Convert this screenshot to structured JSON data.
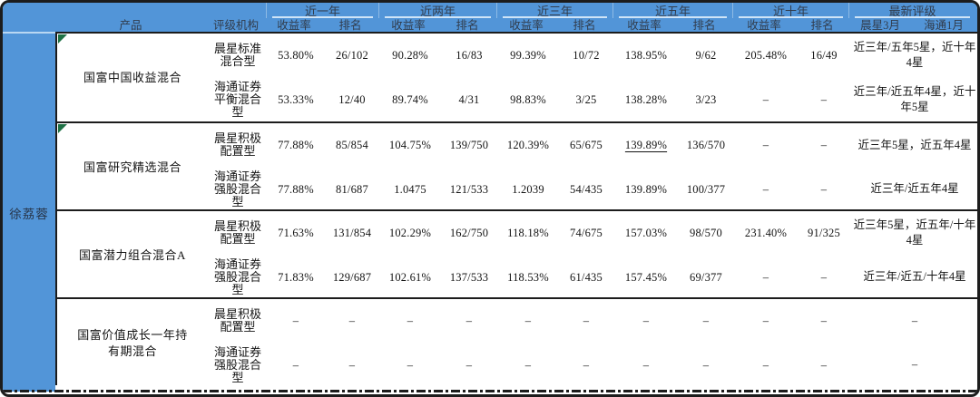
{
  "manager": "徐荔蓉",
  "header": {
    "row_label_product": "产品",
    "row_label_agency": "评级机构",
    "period_groups": [
      "近一年",
      "近两年",
      "近三年",
      "近五年",
      "近十年"
    ],
    "metric_labels": {
      "return": "收益率",
      "rank": "排名"
    },
    "rating": {
      "title": "最新评级",
      "subs": [
        "晨星3月",
        "海通1月"
      ]
    }
  },
  "groups": [
    {
      "product": "国富中国收益混合",
      "rows": [
        {
          "agency": "晨星标准混合型",
          "values": [
            "53.80%",
            "26/102",
            "90.28%",
            "16/83",
            "99.39%",
            "10/72",
            "138.95%",
            "9/62",
            "205.48%",
            "16/49"
          ],
          "rating": "近三年/五年5星，近十年4星"
        },
        {
          "agency": "海通证券平衡混合型",
          "values": [
            "53.33%",
            "12/40",
            "89.74%",
            "4/31",
            "98.83%",
            "3/25",
            "138.28%",
            "3/23",
            "–",
            "–"
          ],
          "rating": "近三年/近五年4星，近十年5星"
        }
      ]
    },
    {
      "product": "国富研究精选混合",
      "rows": [
        {
          "agency": "晨星积极配置型",
          "values": [
            "77.88%",
            "85/854",
            "104.75%",
            "139/750",
            "120.39%",
            "65/675",
            "139.89%",
            "136/570",
            "–",
            "–"
          ],
          "rating": "近三年5星，近五年4星"
        },
        {
          "agency": "海通证券强股混合型",
          "values": [
            "77.88%",
            "81/687",
            "1.0475",
            "121/533",
            "1.2039",
            "54/435",
            "139.89%",
            "100/377",
            "–",
            "–"
          ],
          "rating": "近三年/近五年4星"
        }
      ]
    },
    {
      "product": "国富潜力组合混合A",
      "rows": [
        {
          "agency": "晨星积极配置型",
          "values": [
            "71.63%",
            "131/854",
            "102.29%",
            "162/750",
            "118.18%",
            "74/675",
            "157.03%",
            "98/570",
            "231.40%",
            "91/325"
          ],
          "rating": "近三年5星，近五年/十年4星"
        },
        {
          "agency": "海通证券强股混合型",
          "values": [
            "71.83%",
            "129/687",
            "102.61%",
            "137/533",
            "118.53%",
            "61/435",
            "157.45%",
            "69/377",
            "–",
            "–"
          ],
          "rating": "近三年/近五/十年4星"
        }
      ]
    },
    {
      "product": "国富价值成长一年持有期混合",
      "rows": [
        {
          "agency": "晨星积极配置型",
          "values": [
            "–",
            "–",
            "–",
            "–",
            "–",
            "–",
            "–",
            "–",
            "–",
            "–"
          ],
          "rating": "–"
        },
        {
          "agency": "海通证券强股混合型",
          "values": [
            "–",
            "–",
            "–",
            "–",
            "–",
            "–",
            "–",
            "–",
            "–",
            "–"
          ],
          "rating": "–"
        }
      ]
    }
  ],
  "marks": {
    "underlined_value": {
      "group_index": 1,
      "row_index": 0,
      "value_index": 6
    },
    "comment_flag_group_indexes": [
      0,
      1
    ]
  },
  "colors": {
    "header_blue": "#5295d8",
    "header_light_rule": "#cfe4f7",
    "border_black": "#1c1c1c",
    "comment_flag_green": "#1e7145"
  }
}
